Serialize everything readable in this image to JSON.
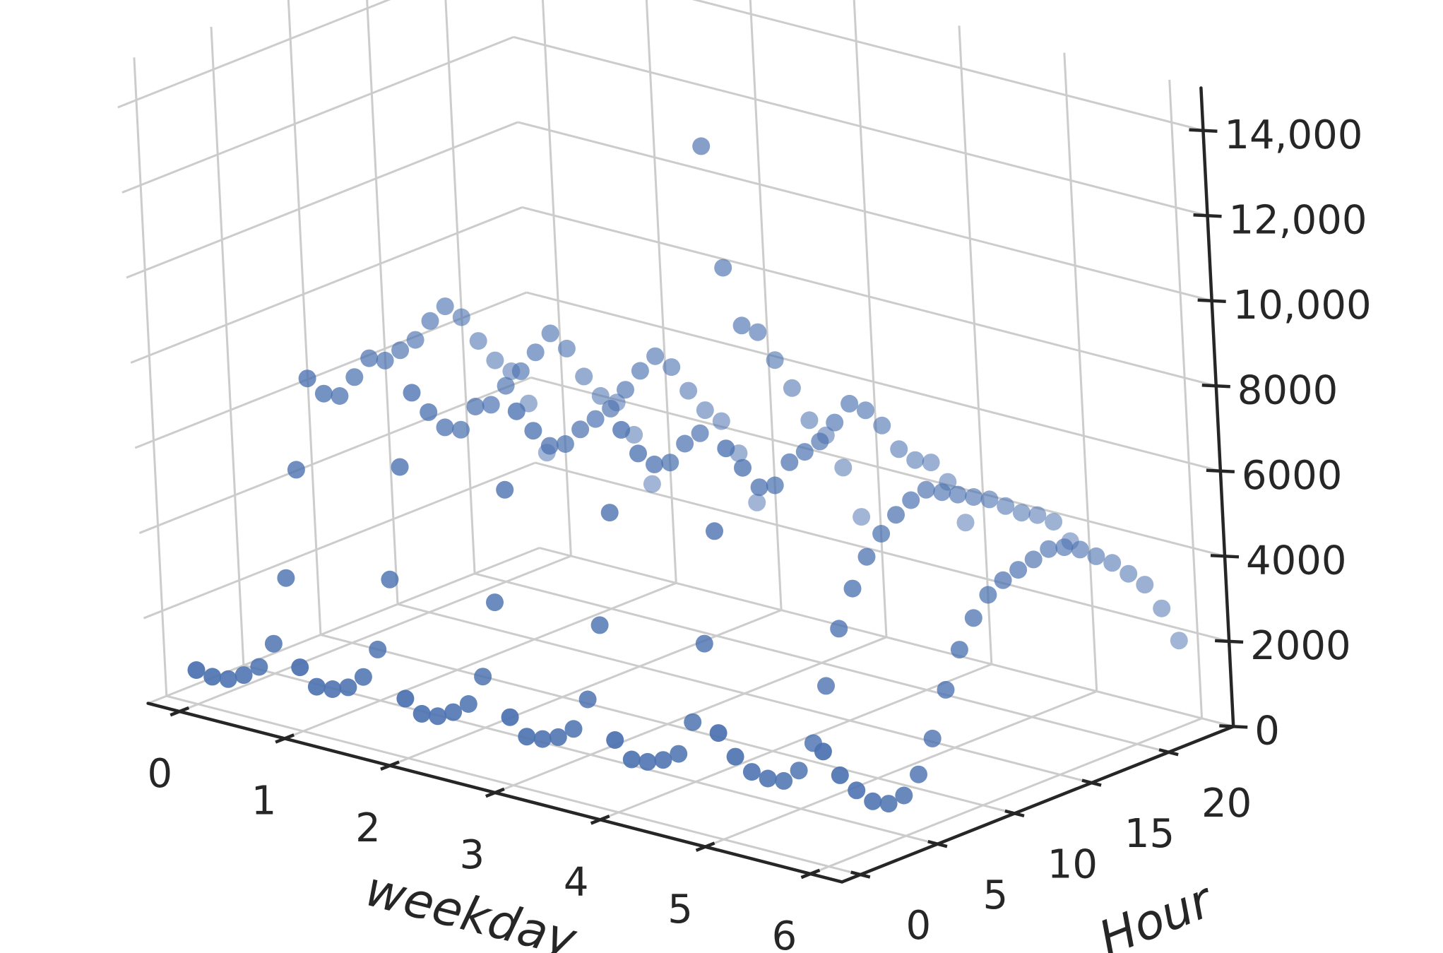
{
  "chart_data": {
    "type": "scatter",
    "projection": "3d",
    "title": "",
    "xlabel": "weekday",
    "ylabel": "Hour",
    "zlabel": "",
    "xlim": [
      -0.3,
      6.3
    ],
    "ylim": [
      -1.2,
      24.2
    ],
    "zlim": [
      0,
      15000
    ],
    "xticks": [
      "0",
      "1",
      "2",
      "3",
      "4",
      "5",
      "6"
    ],
    "yticks": [
      "0",
      "5",
      "10",
      "15",
      "20"
    ],
    "zticks": [
      "0",
      "2000",
      "4000",
      "6000",
      "8000",
      "10,000",
      "12,000",
      "14,000"
    ],
    "grid": true,
    "marker_color": "#4c72b0",
    "series": [
      {
        "x": [
          0,
          0,
          0,
          0,
          0,
          0,
          0,
          0,
          0,
          0,
          0,
          0,
          0,
          0,
          0,
          0,
          0,
          0,
          0,
          0,
          0,
          0,
          0,
          0,
          1,
          1,
          1,
          1,
          1,
          1,
          1,
          1,
          1,
          1,
          1,
          1,
          1,
          1,
          1,
          1,
          1,
          1,
          1,
          1,
          1,
          1,
          1,
          1,
          2,
          2,
          2,
          2,
          2,
          2,
          2,
          2,
          2,
          2,
          2,
          2,
          2,
          2,
          2,
          2,
          2,
          2,
          2,
          2,
          2,
          2,
          2,
          2,
          3,
          3,
          3,
          3,
          3,
          3,
          3,
          3,
          3,
          3,
          3,
          3,
          3,
          3,
          3,
          3,
          3,
          3,
          3,
          3,
          3,
          3,
          3,
          3,
          4,
          4,
          4,
          4,
          4,
          4,
          4,
          4,
          4,
          4,
          4,
          4,
          4,
          4,
          4,
          4,
          4,
          4,
          4,
          4,
          4,
          4,
          4,
          4,
          5,
          5,
          5,
          5,
          5,
          5,
          5,
          5,
          5,
          5,
          5,
          5,
          5,
          5,
          5,
          5,
          5,
          5,
          5,
          5,
          5,
          5,
          5,
          5,
          6,
          6,
          6,
          6,
          6,
          6,
          6,
          6,
          6,
          6,
          6,
          6,
          6,
          6,
          6,
          6,
          6,
          6,
          6,
          6,
          6,
          6,
          6,
          6
        ],
        "y": [
          0,
          1,
          2,
          3,
          4,
          5,
          6,
          7,
          8,
          9,
          10,
          11,
          12,
          13,
          14,
          15,
          16,
          17,
          18,
          19,
          20,
          21,
          22,
          23,
          0,
          1,
          2,
          3,
          4,
          5,
          6,
          7,
          8,
          9,
          10,
          11,
          12,
          13,
          14,
          15,
          16,
          17,
          18,
          19,
          20,
          21,
          22,
          23,
          0,
          1,
          2,
          3,
          4,
          5,
          6,
          7,
          8,
          9,
          10,
          11,
          12,
          13,
          14,
          15,
          16,
          17,
          18,
          19,
          20,
          21,
          22,
          23,
          0,
          1,
          2,
          3,
          4,
          5,
          6,
          7,
          8,
          9,
          10,
          11,
          12,
          13,
          14,
          15,
          16,
          17,
          18,
          19,
          20,
          21,
          22,
          23,
          0,
          1,
          2,
          3,
          4,
          5,
          6,
          7,
          8,
          9,
          10,
          11,
          12,
          13,
          14,
          15,
          16,
          17,
          18,
          19,
          20,
          21,
          22,
          23,
          0,
          1,
          2,
          3,
          4,
          5,
          6,
          7,
          8,
          9,
          10,
          11,
          12,
          13,
          14,
          15,
          16,
          17,
          18,
          19,
          20,
          21,
          22,
          23,
          0,
          1,
          2,
          3,
          4,
          5,
          6,
          7,
          8,
          9,
          10,
          11,
          12,
          13,
          14,
          15,
          16,
          17,
          18,
          19,
          20,
          21,
          22,
          23
        ],
        "z": [
          800,
          500,
          300,
          250,
          300,
          700,
          2100,
          4500,
          6500,
          6000,
          5800,
          6100,
          6400,
          6200,
          6300,
          6400,
          6700,
          6900,
          6500,
          5800,
          5200,
          4800,
          3900,
          2600,
          1500,
          900,
          700,
          600,
          700,
          1200,
          2700,
          5200,
          6800,
          6200,
          5700,
          5500,
          5900,
          5800,
          6100,
          6300,
          6600,
          6900,
          6400,
          5600,
          5000,
          4700,
          3800,
          2500,
          1400,
          900,
          700,
          650,
          700,
          1200,
          2800,
          5300,
          7000,
          6400,
          5900,
          5800,
          6000,
          6100,
          6200,
          6500,
          6800,
          7000,
          6600,
          5900,
          5300,
          4900,
          4000,
          2700,
          1600,
          1000,
          800,
          700,
          750,
          1300,
          2900,
          5400,
          7200,
          6500,
          6100,
          6000,
          6300,
          6400,
          13000,
          10000,
          8500,
          8200,
          7400,
          6600,
          5700,
          5200,
          4300,
          3000,
          1700,
          1100,
          900,
          800,
          800,
          1400,
          3100,
          5600,
          7400,
          6800,
          6200,
          6100,
          6500,
          6600,
          6700,
          7000,
          7300,
          7000,
          6500,
          5800,
          5400,
          5200,
          4600,
          3500,
          2500,
          1800,
          1300,
          1000,
          800,
          900,
          1400,
          2600,
          3800,
          4600,
          5200,
          5600,
          5900,
          6100,
          6200,
          6000,
          5800,
          5600,
          5400,
          5100,
          4800,
          4600,
          4300,
          3700,
          2700,
          2000,
          1500,
          1100,
          900,
          950,
          1300,
          2000,
          3000,
          3800,
          4400,
          4800,
          5000,
          5100,
          5200,
          5300,
          5200,
          5000,
          4700,
          4400,
          4000,
          3600,
          2900,
          2000
        ]
      }
    ]
  }
}
